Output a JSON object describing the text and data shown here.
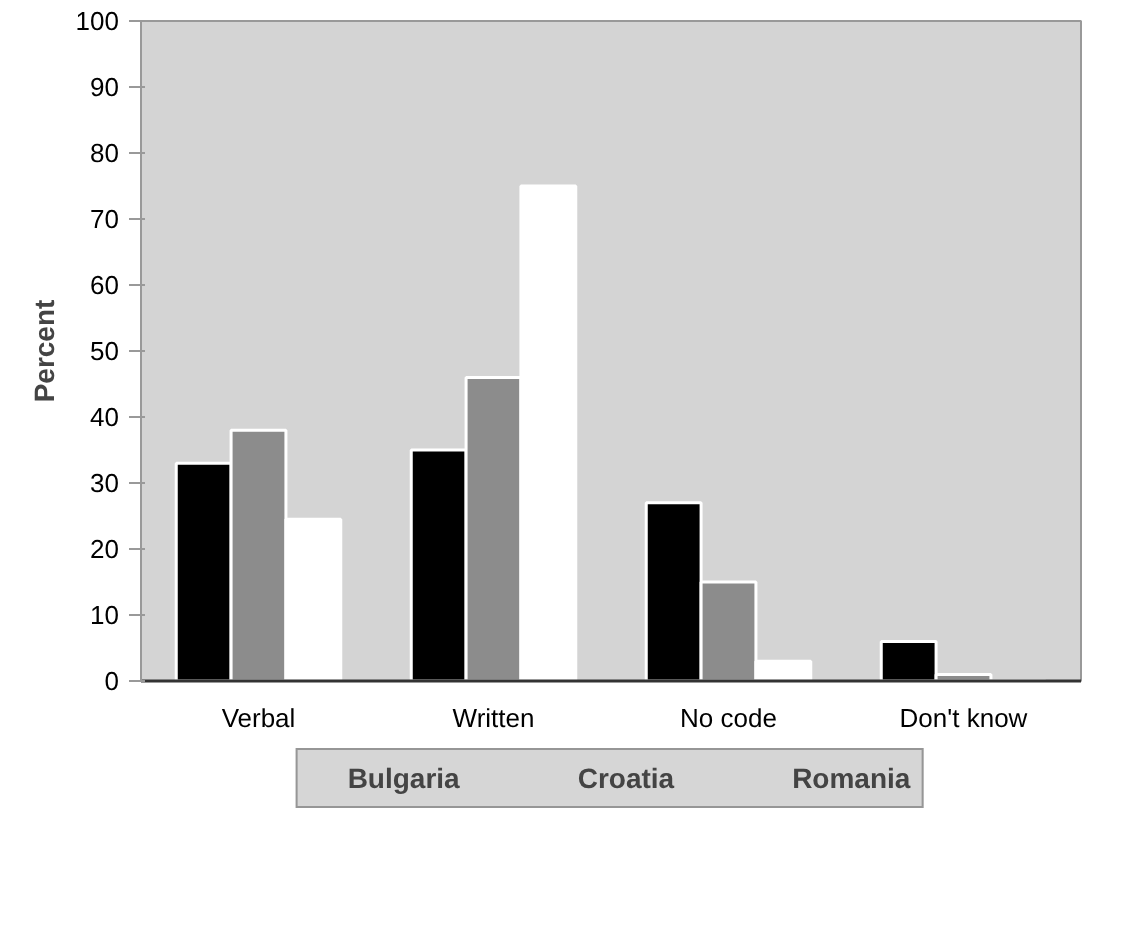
{
  "chart_data": {
    "type": "bar",
    "ylabel": "Percent",
    "categories": [
      "Verbal",
      "Written",
      "No code",
      "Don't know"
    ],
    "series": [
      {
        "name": "Bulgaria",
        "color": "#000000",
        "values": [
          33,
          35,
          27,
          6
        ]
      },
      {
        "name": "Croatia",
        "color": "#8c8c8c",
        "values": [
          38,
          46,
          15,
          1
        ]
      },
      {
        "name": "Romania",
        "color": "#ffffff",
        "values": [
          24.5,
          75,
          3,
          0
        ]
      }
    ],
    "ylim": [
      0,
      100
    ],
    "yticks": [
      0,
      10,
      20,
      30,
      40,
      50,
      60,
      70,
      80,
      90,
      100
    ],
    "grid": false,
    "legend": "bottom"
  }
}
